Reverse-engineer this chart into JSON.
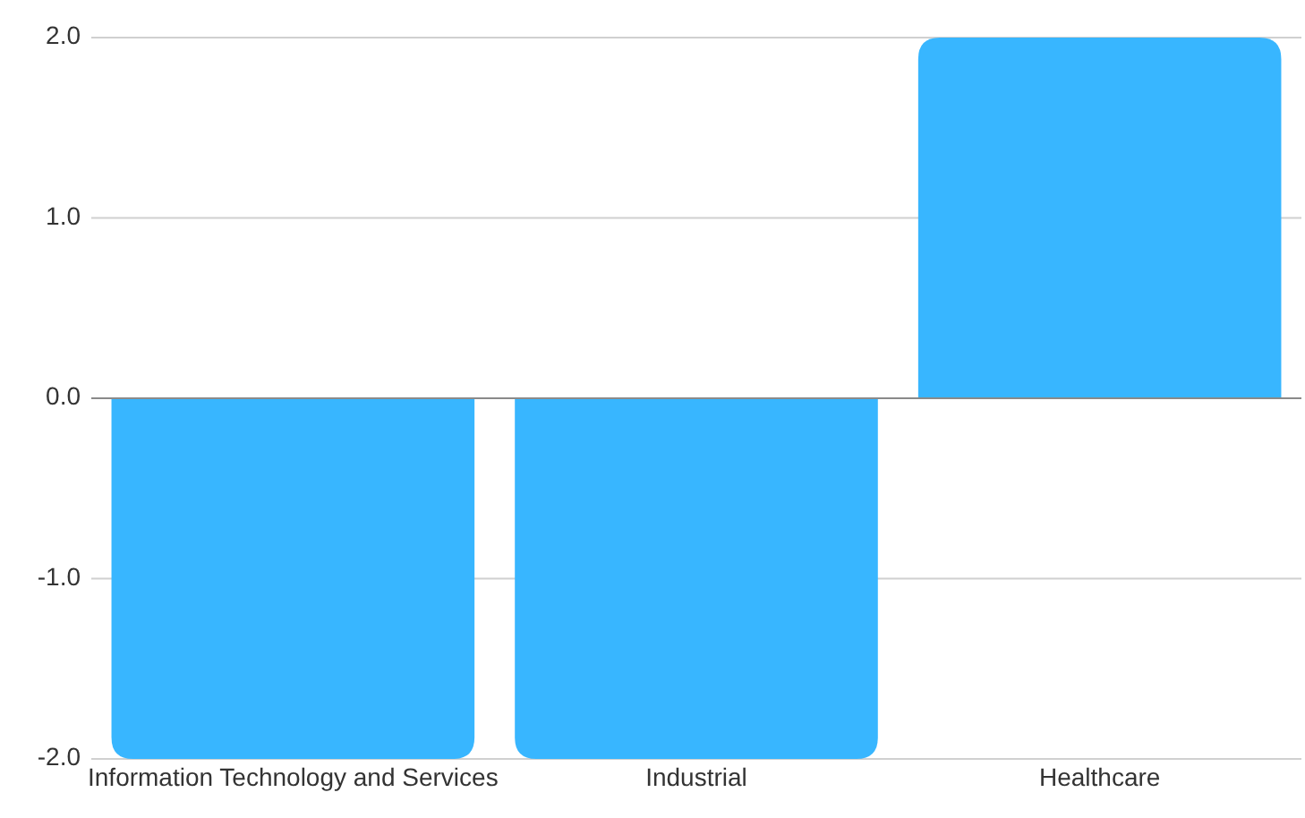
{
  "chart_data": {
    "type": "bar",
    "categories": [
      "Information Technology and Services",
      "Industrial",
      "Healthcare"
    ],
    "values": [
      -2.0,
      -2.0,
      2.0
    ],
    "color": "#38b6ff",
    "ylim": [
      -2,
      2
    ],
    "yticks": [
      {
        "value": -2,
        "label": "-2.0"
      },
      {
        "value": -1,
        "label": "-1.0"
      },
      {
        "value": 0,
        "label": "0.0"
      },
      {
        "value": 1,
        "label": "1.0"
      },
      {
        "value": 2,
        "label": "2.0"
      }
    ],
    "grid": "y"
  }
}
